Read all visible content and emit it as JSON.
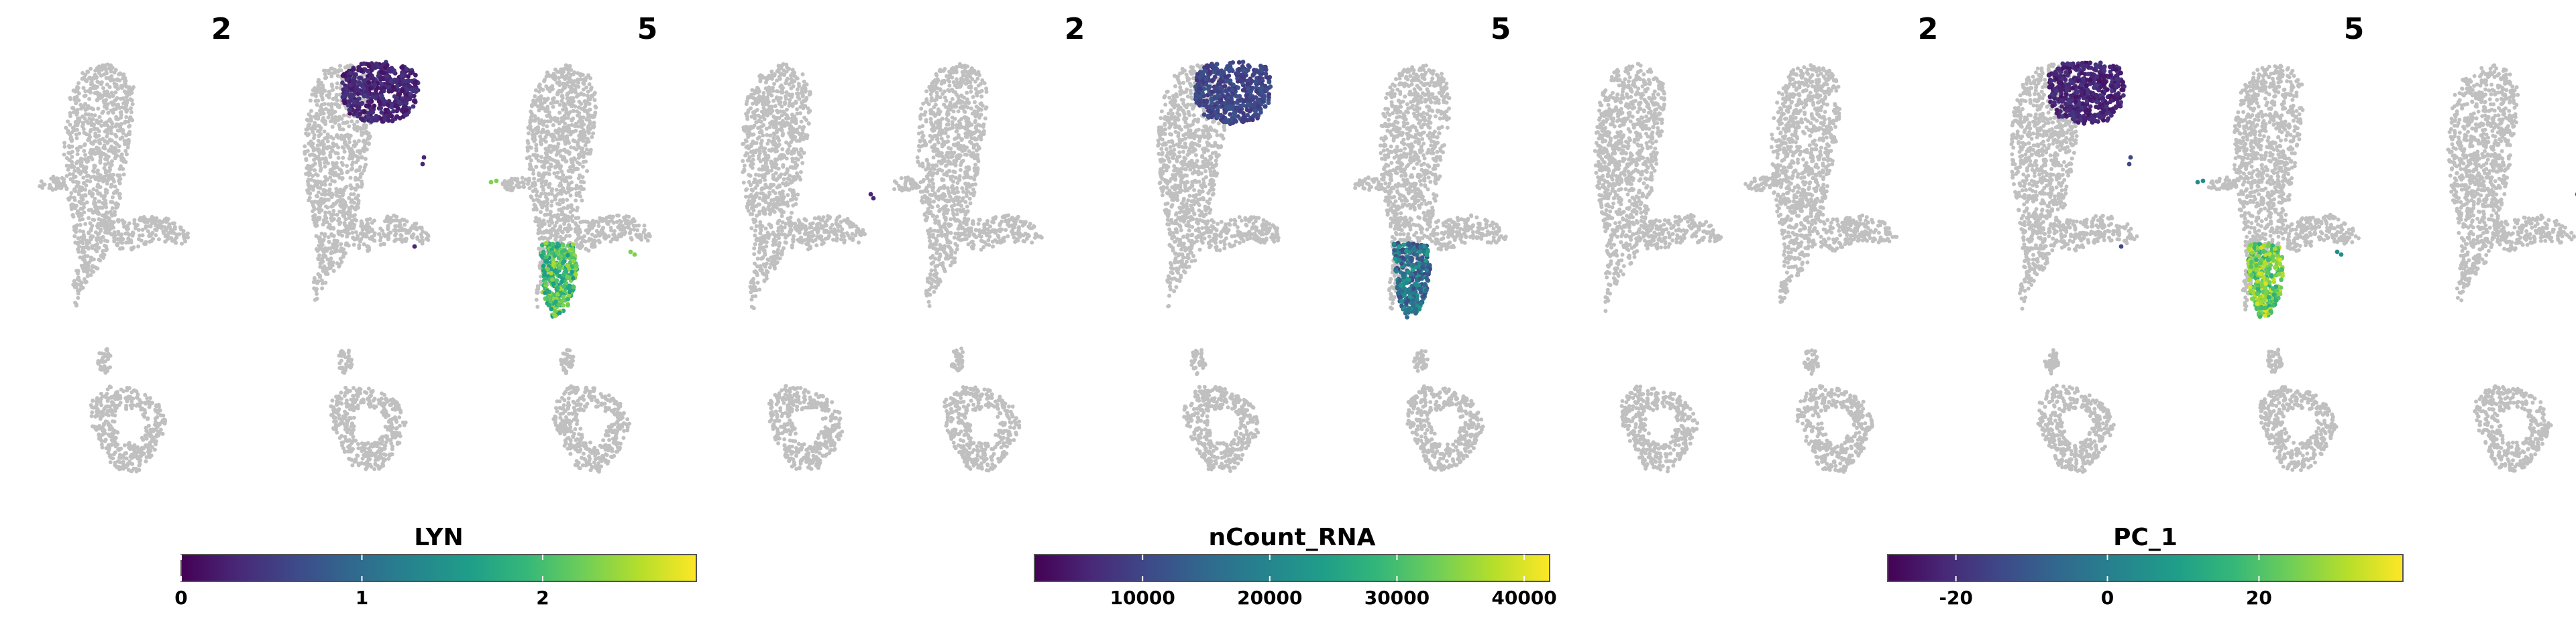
{
  "chart_data": [
    {
      "type": "scatter",
      "feature": "LYN",
      "panels": [
        "2",
        "5"
      ],
      "colorbar": {
        "label": "LYN",
        "range": [
          0,
          2.85
        ],
        "ticks": [
          0,
          1,
          2
        ]
      },
      "highlight_values": {
        "cluster_2": 0.3,
        "cluster_5": 2.0
      }
    },
    {
      "type": "scatter",
      "feature": "nCount_RNA",
      "panels": [
        "2",
        "5"
      ],
      "colorbar": {
        "label": "nCount_RNA",
        "range": [
          1500,
          42000
        ],
        "ticks": [
          10000,
          20000,
          30000,
          40000
        ]
      },
      "highlight_values": {
        "cluster_2": 10000,
        "cluster_5": 17000
      }
    },
    {
      "type": "scatter",
      "feature": "PC_1",
      "panels": [
        "2",
        "5"
      ],
      "colorbar": {
        "label": "PC_1",
        "range": [
          -29,
          39
        ],
        "ticks": [
          -20,
          0,
          20
        ]
      },
      "highlight_values": {
        "cluster_2": -22,
        "cluster_5": 24
      }
    }
  ],
  "colors": {
    "background_cells": "#c0c0c0",
    "colormap": "viridis",
    "viridis_stops": [
      "#440154",
      "#482878",
      "#3e4989",
      "#31688e",
      "#26828e",
      "#1f9e89",
      "#35b779",
      "#6ece58",
      "#b5de2b",
      "#fde725"
    ]
  }
}
